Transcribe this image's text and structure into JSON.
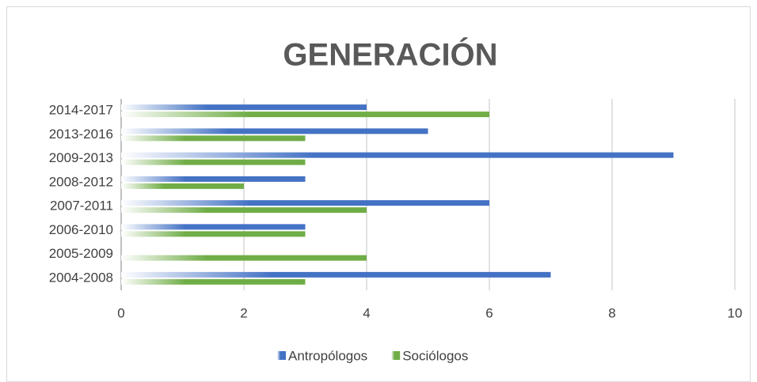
{
  "chart_data": {
    "type": "bar",
    "orientation": "horizontal",
    "title": "GENERACIÓN",
    "categories": [
      "2004-2008",
      "2005-2009",
      "2006-2010",
      "2007-2011",
      "2008-2012",
      "2009-2013",
      "2013-2016",
      "2014-2017"
    ],
    "series": [
      {
        "name": "Antropólogos",
        "color": "#4472c4",
        "values": [
          7,
          0,
          3,
          6,
          3,
          9,
          5,
          4
        ]
      },
      {
        "name": "Sociólogos",
        "color": "#70ad47",
        "values": [
          3,
          4,
          3,
          4,
          2,
          3,
          3,
          6
        ]
      }
    ],
    "xlim": [
      0,
      10
    ],
    "xticks": [
      0,
      2,
      4,
      6,
      8,
      10
    ],
    "grid": true,
    "legend": "bottom"
  }
}
